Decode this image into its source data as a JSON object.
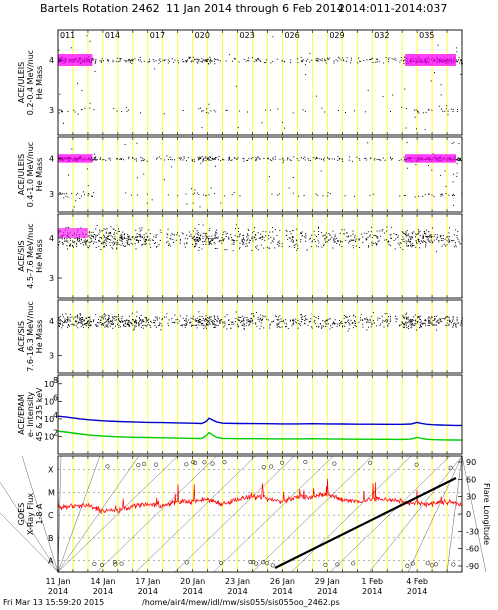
{
  "title_left": "Bartels Rotation 2462",
  "title_mid": "11 Jan 2014 through 6 Feb 2014",
  "title_right": "2014:011-2014:037",
  "footer_timestamp": "Fri Mar 13 15:59:20 2015",
  "footer_path": "/home/air4/mew/idl/mw/sis055/sis055oo_2462.ps",
  "chart_data": [
    {
      "type": "scatter",
      "panel": "ACE/ULEIS 0.2-0.4 MeV/nuc",
      "ylabel_lines": [
        "ACE/ULEIS",
        "0.2-0.4 MeV/nuc",
        "He Mass"
      ],
      "yticks": [
        "4",
        "3"
      ],
      "xlim": [
        11,
        38
      ],
      "ylim": [
        2.5,
        4.6
      ],
      "x_tick_labels": [
        "011",
        "014",
        "017",
        "020",
        "023",
        "026",
        "029",
        "032",
        "035"
      ]
    },
    {
      "type": "scatter",
      "panel": "ACE/ULEIS 0.4-1.0 MeV/nuc",
      "ylabel_lines": [
        "ACE/ULEIS",
        "0.4-1.0 MeV/nuc",
        "He Mass"
      ],
      "yticks": [
        "4",
        "3"
      ],
      "xlim": [
        11,
        38
      ],
      "ylim": [
        2.5,
        4.6
      ]
    },
    {
      "type": "scatter",
      "panel": "ACE/SIS 4.5-7.6 MeV/nuc",
      "ylabel_lines": [
        "ACE/SIS",
        "4.5-7.6 MeV/nuc",
        "He Mass"
      ],
      "yticks": [
        "4",
        "3"
      ],
      "xlim": [
        11,
        38
      ],
      "ylim": [
        2.5,
        4.6
      ]
    },
    {
      "type": "scatter",
      "panel": "ACE/SIS 7.6-16.3 MeV/nuc",
      "ylabel_lines": [
        "ACE/SIS",
        "7.6-16.3 MeV/nuc",
        "He Mass"
      ],
      "yticks": [
        "4",
        "3"
      ],
      "xlim": [
        11,
        38
      ],
      "ylim": [
        2.5,
        4.6
      ]
    },
    {
      "type": "line",
      "panel": "ACE/EPAM",
      "ylabel_lines": [
        "ACE/EPAM",
        "e- Intensity",
        "45 & 235 keV"
      ],
      "ytick_exponents": [
        "8",
        "6",
        "4",
        "2"
      ],
      "ytick_base": "10",
      "log_scale": true,
      "ylim": [
        1,
        1000000000
      ],
      "xlim": [
        11,
        38
      ],
      "series": [
        {
          "color": "#0000cc",
          "x": [
            11.0,
            11.5,
            12,
            12.5,
            13,
            14,
            15,
            16,
            17,
            18,
            19,
            20,
            20.6,
            20.9,
            21.1,
            21.3,
            21.6,
            22,
            23,
            24,
            25,
            26,
            27,
            28,
            29,
            30,
            31,
            32,
            33,
            34,
            34.6,
            35,
            35.3,
            35.6,
            36,
            36.5,
            37,
            37.5,
            38
          ],
          "y": [
            20000,
            17000,
            13000,
            10000,
            8000,
            6000,
            5000,
            4500,
            4000,
            3800,
            3500,
            3200,
            3000,
            5000,
            12000,
            8000,
            4500,
            3200,
            3000,
            2900,
            2800,
            2700,
            2700,
            2800,
            2700,
            2600,
            2500,
            2500,
            2400,
            2400,
            2600,
            4000,
            3000,
            2500,
            2200,
            2000,
            1900,
            1800,
            1800
          ]
        },
        {
          "color": "#00cc00",
          "x": [
            11.0,
            11.5,
            12,
            12.5,
            13,
            14,
            15,
            16,
            17,
            18,
            19,
            20,
            20.6,
            20.9,
            21.1,
            21.3,
            21.6,
            22,
            23,
            24,
            25,
            26,
            27,
            28,
            29,
            30,
            31,
            32,
            33,
            34,
            34.6,
            35,
            35.3,
            35.6,
            36,
            36.5,
            37,
            37.5,
            38
          ],
          "y": [
            400,
            320,
            250,
            190,
            150,
            110,
            90,
            80,
            75,
            70,
            65,
            60,
            58,
            120,
            280,
            160,
            80,
            60,
            56,
            55,
            54,
            53,
            52,
            55,
            52,
            50,
            49,
            48,
            47,
            46,
            50,
            80,
            58,
            48,
            44,
            42,
            40,
            39,
            38
          ]
        }
      ]
    },
    {
      "type": "line",
      "panel": "GOES X-Ray Flux 1-8 A",
      "ylabel_lines": [
        "GOES",
        "X-Ray Flux",
        "1-8 A"
      ],
      "yticks": [
        "X",
        "M",
        "C",
        "B",
        "A"
      ],
      "y2label": "Flare Longitude",
      "y2ticks": [
        "90",
        "60",
        "30",
        "0",
        "-30",
        "-60",
        "-90"
      ],
      "xlim": [
        11,
        38
      ],
      "series": [
        {
          "name": "",
          "color": "#ff0000",
          "x": [
            11,
            12,
            13,
            14,
            15,
            16,
            17,
            18,
            19,
            20,
            21,
            22,
            23,
            24,
            25,
            26,
            27,
            28,
            29,
            30,
            31,
            32,
            33,
            34,
            35,
            36,
            37,
            38
          ],
          "y": [
            -5.7,
            -5.6,
            -5.6,
            -5.8,
            -5.8,
            -5.6,
            -5.5,
            -5.6,
            -5.4,
            -5.4,
            -5.3,
            -5.5,
            -5.3,
            -5.2,
            -5.3,
            -5.4,
            -5.2,
            -5.2,
            -5.1,
            -5.3,
            -5.4,
            -5.3,
            -5.3,
            -5.4,
            -5.5,
            -5.5,
            -5.4,
            -5.5
          ]
        }
      ]
    }
  ],
  "bottom_axis": {
    "dates": [
      "11 Jan",
      "14 Jan",
      "17 Jan",
      "20 Jan",
      "23 Jan",
      "26 Jan",
      "29 Jan",
      "1 Feb",
      "4 Feb"
    ],
    "years": [
      "2014",
      "2014",
      "2014",
      "2014",
      "2014",
      "2014",
      "2014",
      "2014",
      "2014"
    ]
  },
  "colors": {
    "grid_yellow": "#ffff00",
    "point": "#000000",
    "magenta": "#ff00ff",
    "epam_high": "#0000cc",
    "epam_low": "#00cc00",
    "goes": "#ff0000"
  }
}
